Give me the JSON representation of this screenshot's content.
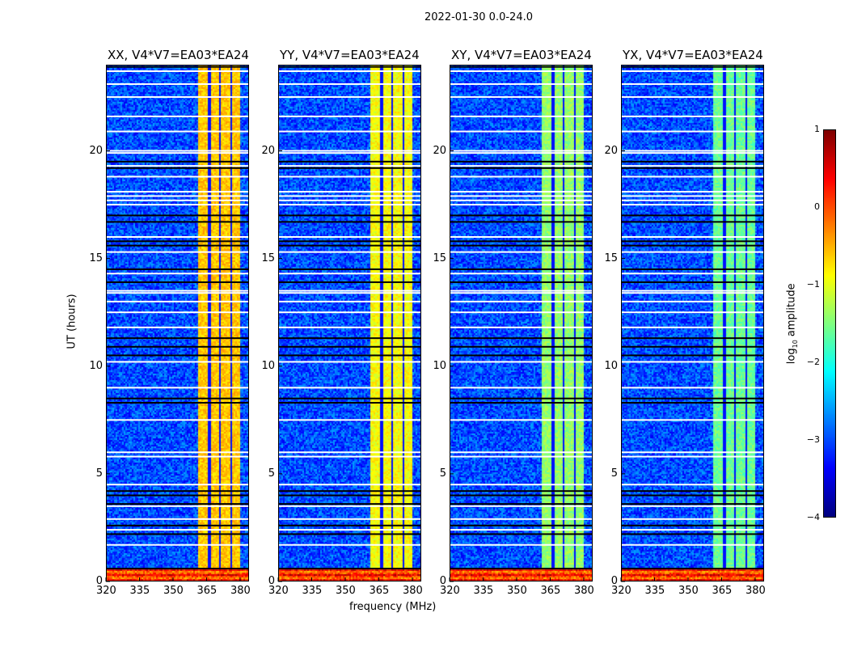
{
  "suptitle": "2022-01-30 0.0-24.0",
  "chart_data": {
    "type": "heatmap",
    "xlabel": "frequency (MHz)",
    "ylabel": "UT (hours)",
    "xlim": [
      320,
      384
    ],
    "ylim": [
      0,
      24
    ],
    "xticks": [
      320,
      335,
      350,
      365,
      380
    ],
    "yticks": [
      0,
      5,
      10,
      15,
      20
    ],
    "panels": [
      {
        "title": "XX, V4*V7=EA03*EA24",
        "band_level": -0.6
      },
      {
        "title": "YY, V4*V7=EA03*EA24",
        "band_level": -0.9
      },
      {
        "title": "XY, V4*V7=EA03*EA24",
        "band_level": -1.4
      },
      {
        "title": "YX, V4*V7=EA03*EA24",
        "band_level": -1.6
      }
    ],
    "background_level": -3.0,
    "band_mhz": [
      361,
      380
    ],
    "band_gaps_mhz": [
      366,
      370.5,
      375.5
    ],
    "band_start_hours": 0.6,
    "low_time_hours": [
      0,
      0.6
    ],
    "low_time_level": 0.1,
    "flagged_white_hours": [
      23.7,
      23.1,
      22.5,
      21.6,
      20.9,
      20.0,
      19.9,
      19.3,
      18.8,
      18.1,
      17.9,
      17.7,
      17.5,
      16.0,
      15.3,
      14.3,
      13.5,
      13.4,
      13.0,
      12.5,
      11.8,
      10.2,
      9.0,
      7.5,
      6.0,
      5.8,
      4.5,
      3.5,
      2.9,
      2.4,
      1.7
    ],
    "flagged_black_hours": [
      23.9,
      19.5,
      19.2,
      17.0,
      16.7,
      15.8,
      15.6,
      14.5,
      13.9,
      11.3,
      10.9,
      10.5,
      8.5,
      8.3,
      4.2,
      4.0,
      3.6,
      2.6,
      2.2,
      0.6
    ],
    "colorbar": {
      "label": "log10 amplitude",
      "label_main": "log",
      "label_sub": "10",
      "label_rest": " amplitude",
      "range": [
        -4,
        1
      ],
      "ticks": [
        "1",
        "0",
        "−1",
        "−2",
        "−3",
        "−4"
      ],
      "colormap": "jet"
    }
  }
}
